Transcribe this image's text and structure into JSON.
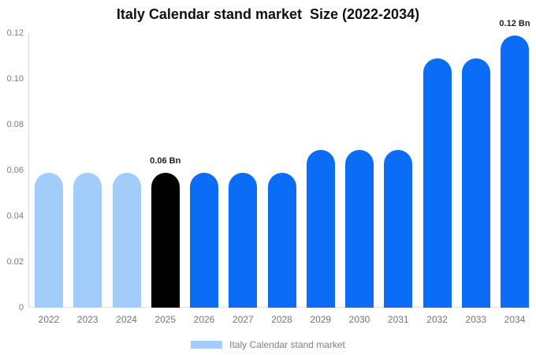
{
  "chart_data": {
    "type": "bar",
    "title": "Italy Calendar stand market  Size (2022-2034)",
    "categories": [
      "2022",
      "2023",
      "2024",
      "2025",
      "2026",
      "2027",
      "2028",
      "2029",
      "2030",
      "2031",
      "2032",
      "2033",
      "2034"
    ],
    "values": [
      0.059,
      0.059,
      0.059,
      0.059,
      0.059,
      0.059,
      0.059,
      0.069,
      0.069,
      0.069,
      0.109,
      0.109,
      0.119
    ],
    "bar_colors": [
      "#a2ccf9",
      "#a2ccf9",
      "#a2ccf9",
      "#000000",
      "#0b6df6",
      "#0b6df6",
      "#0b6df6",
      "#0b6df6",
      "#0b6df6",
      "#0b6df6",
      "#0b6df6",
      "#0b6df6",
      "#0b6df6"
    ],
    "data_labels": [
      null,
      null,
      null,
      "0.06 Bn",
      null,
      null,
      null,
      null,
      null,
      null,
      null,
      null,
      "0.12 Bn"
    ],
    "xlabel": "",
    "ylabel": "",
    "ylim": [
      0,
      0.12
    ],
    "yticks": [
      {
        "value": 0,
        "label": "0"
      },
      {
        "value": 0.02,
        "label": "0.02"
      },
      {
        "value": 0.04,
        "label": "0.04"
      },
      {
        "value": 0.06,
        "label": "0.06"
      },
      {
        "value": 0.08,
        "label": "0.08"
      },
      {
        "value": 0.1,
        "label": "0.10"
      },
      {
        "value": 0.12,
        "label": "0.12"
      }
    ],
    "grid": false,
    "legend_position": "bottom",
    "legend": [
      {
        "label": "Italy Calendar stand market",
        "color": "#a2ccf9"
      }
    ],
    "colors": {
      "highlight_bar": "#000000",
      "historic_bars": "#a2ccf9",
      "forecast_bars": "#0b6df6",
      "axis_line": "#d8d8d8",
      "tick_text": "#7a7a7a"
    }
  }
}
